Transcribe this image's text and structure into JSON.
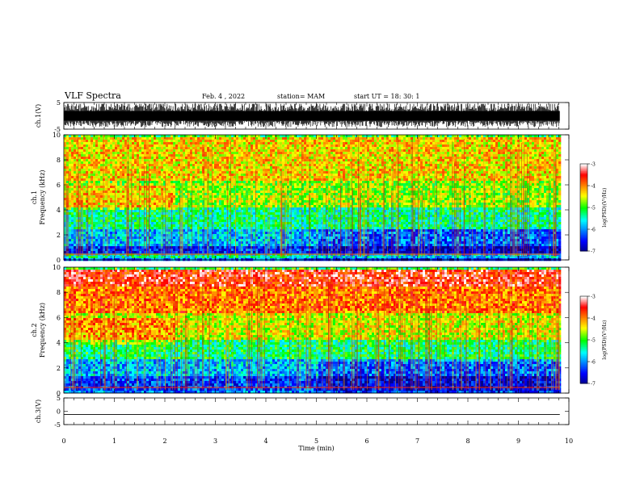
{
  "header": {
    "title": "VLF Spectra",
    "date": "Feb. 4 , 2022",
    "station": "station= MAM",
    "start": "start  UT =   18: 30: 1"
  },
  "chart_data": [
    {
      "type": "line",
      "panel": "ch1-waveform",
      "ylabel": "ch.1(V)",
      "ylim": [
        -5,
        5
      ],
      "yticks": [
        5,
        -5
      ],
      "xlim": [
        0,
        10
      ],
      "note_series": "dense impulsive waveform, amplitude spans nearly full scale"
    },
    {
      "type": "heatmap",
      "panel": "ch1-spectrogram",
      "ylabel": "ch.1\nFrequency (kHz)",
      "ylim": [
        0,
        10
      ],
      "yticks": [
        0,
        2,
        4,
        6,
        8,
        10
      ],
      "xlim": [
        0,
        10
      ],
      "data_end_min": 9.82,
      "colorbar": {
        "label": "log(PSD)(V²/Hz)",
        "range": [
          -7,
          -3
        ],
        "ticks": [
          -3,
          -4,
          -5,
          -6,
          -7
        ]
      },
      "bands_khz_logpsd": [
        [
          0.0,
          0.3,
          -6.2
        ],
        [
          0.3,
          0.6,
          -5.4
        ],
        [
          0.6,
          1.2,
          -6.4
        ],
        [
          1.2,
          2.6,
          -5.8
        ],
        [
          2.6,
          4.2,
          -5.3
        ],
        [
          4.2,
          6.5,
          -4.7
        ],
        [
          6.5,
          10.0,
          -4.3
        ]
      ]
    },
    {
      "type": "heatmap",
      "panel": "ch2-spectrogram",
      "ylabel": "ch.2\nFrequency (kHz)",
      "ylim": [
        0,
        10
      ],
      "yticks": [
        0,
        2,
        4,
        6,
        8,
        10
      ],
      "xlim": [
        0,
        10
      ],
      "data_end_min": 9.82,
      "colorbar": {
        "label": "log(PSD)(V²/Hz)",
        "range": [
          -7,
          -3
        ],
        "ticks": [
          -3,
          -4,
          -5,
          -6,
          -7
        ]
      },
      "bands_khz_logpsd": [
        [
          0.0,
          0.3,
          -6.0
        ],
        [
          0.3,
          1.4,
          -6.3
        ],
        [
          1.4,
          2.8,
          -5.8
        ],
        [
          2.8,
          4.3,
          -5.2
        ],
        [
          4.3,
          6.5,
          -4.5
        ],
        [
          6.5,
          8.5,
          -3.9
        ],
        [
          8.5,
          10.0,
          -3.5
        ]
      ]
    },
    {
      "type": "line",
      "panel": "ch3-waveform",
      "ylabel": "ch.3(V)",
      "ylim": [
        -5,
        5
      ],
      "yticks": [
        5,
        0,
        -5
      ],
      "xlim": [
        0,
        10
      ],
      "xlabel": "Time (min)",
      "xticks": [
        0,
        1,
        2,
        3,
        4,
        5,
        6,
        7,
        8,
        9,
        10
      ],
      "series": [
        {
          "x": [
            0,
            9.82
          ],
          "y": [
            -1.2,
            -1.2
          ]
        }
      ]
    }
  ]
}
